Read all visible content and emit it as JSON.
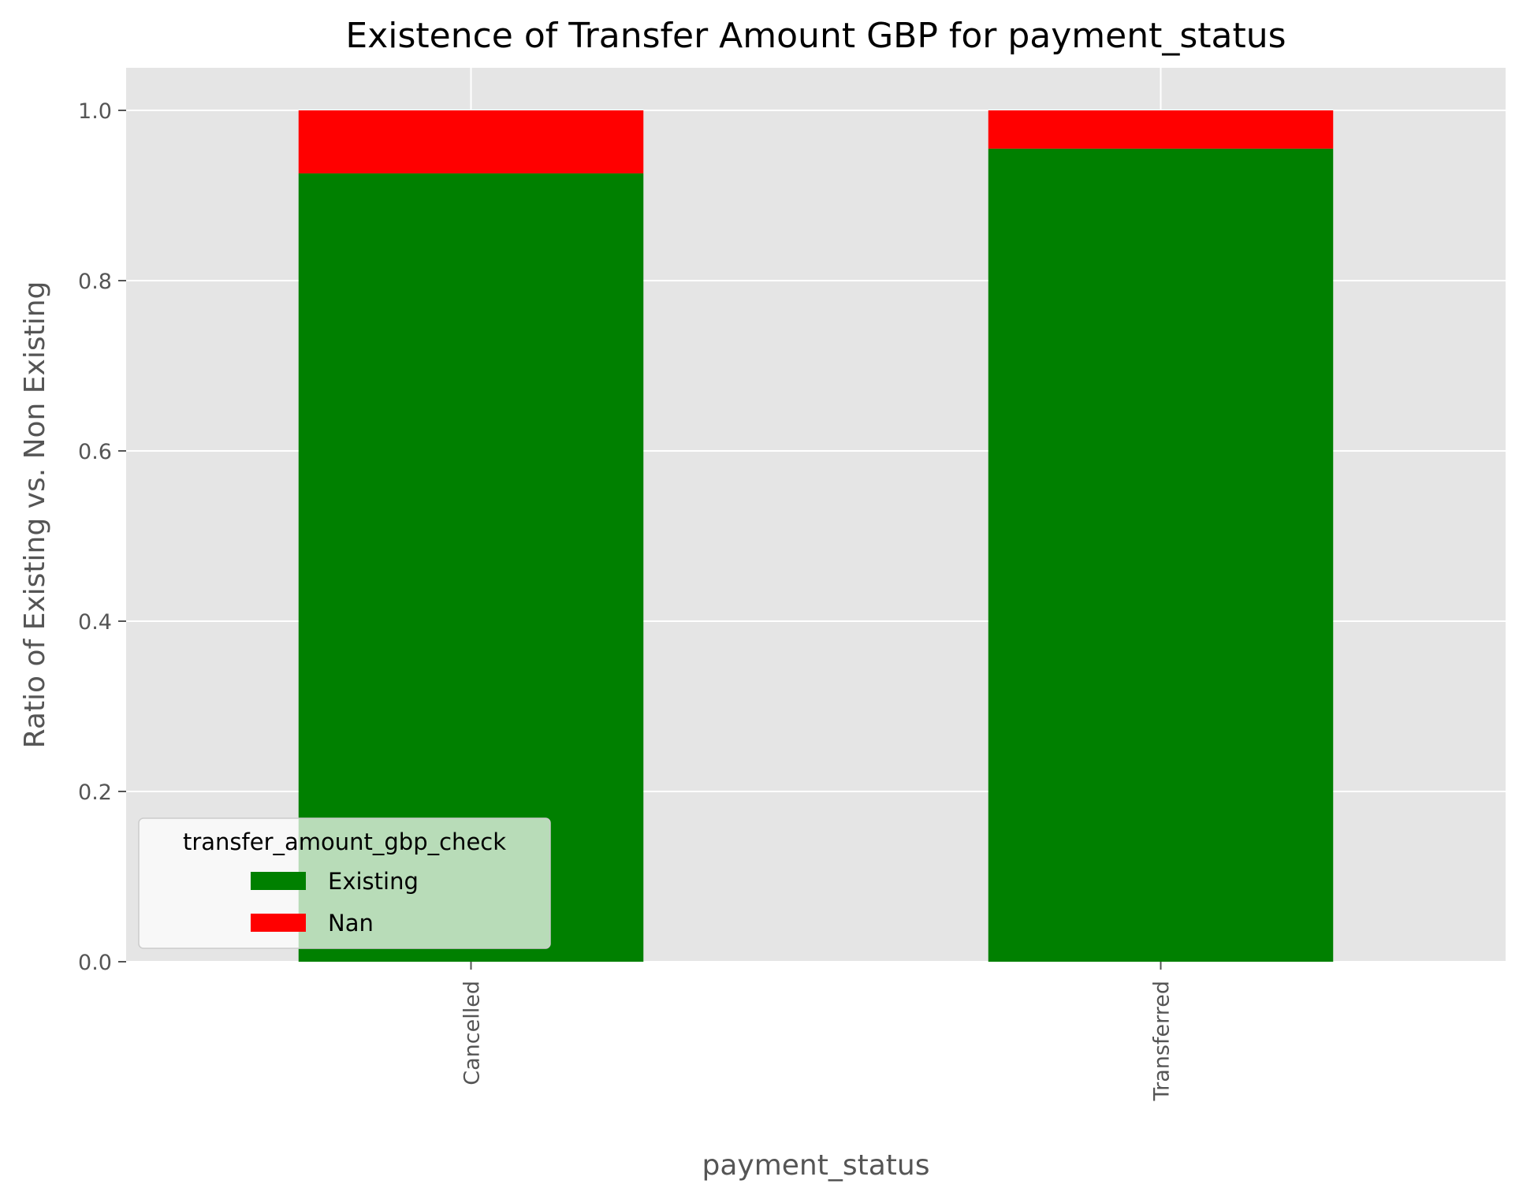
{
  "chart_data": {
    "type": "bar",
    "stacked": true,
    "title": "Existence of Transfer Amount GBP for payment_status",
    "xlabel": "payment_status",
    "ylabel": "Ratio of Existing vs. Non Existing",
    "categories": [
      "Cancelled",
      "Transferred"
    ],
    "series": [
      {
        "name": "Existing",
        "color": "#008000",
        "values": [
          0.926,
          0.955
        ]
      },
      {
        "name": "Nan",
        "color": "#ff0000",
        "values": [
          0.074,
          0.045
        ]
      }
    ],
    "ylim": [
      0,
      1.05
    ],
    "yticks": [
      "0.0",
      "0.2",
      "0.4",
      "0.6",
      "0.8",
      "1.0"
    ],
    "grid": true,
    "legend": {
      "title": "transfer_amount_gbp_check",
      "position": "lower-left"
    },
    "colors": {
      "background": "#e5e5e5",
      "grid": "#ffffff"
    }
  }
}
